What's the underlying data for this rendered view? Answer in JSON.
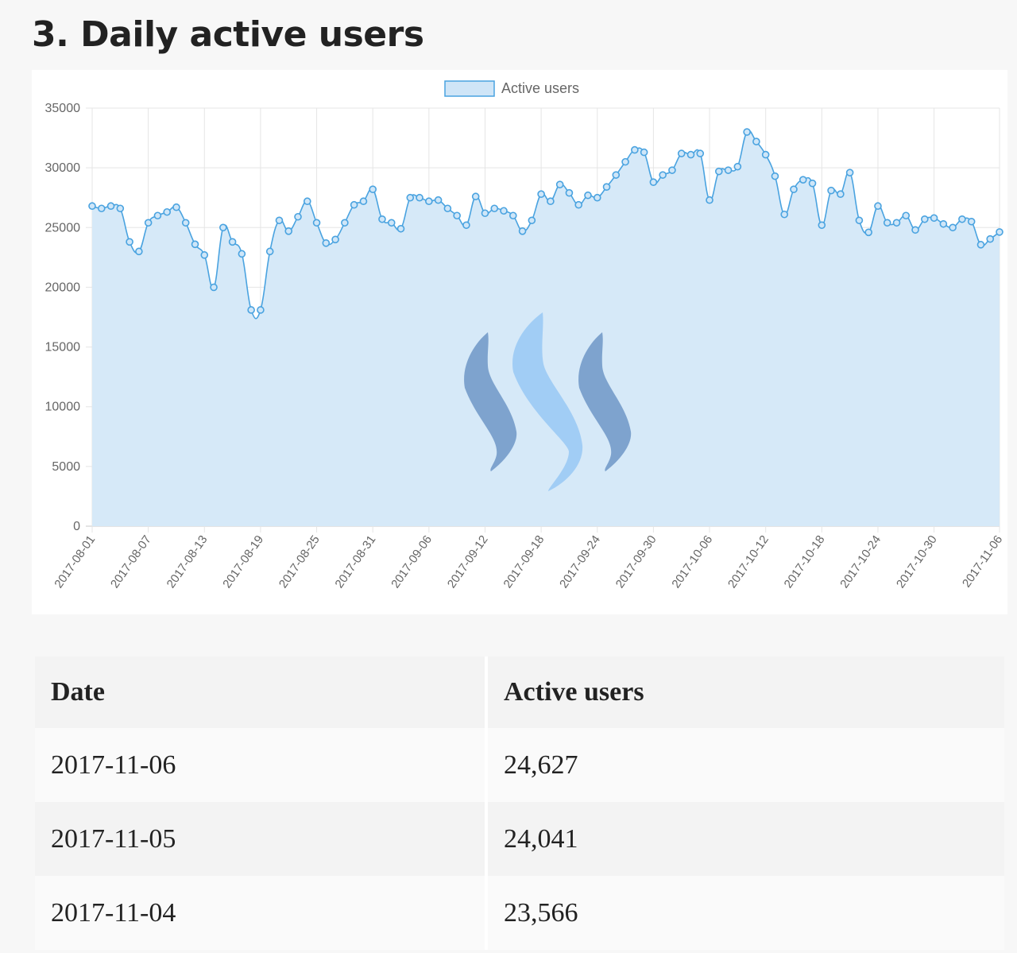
{
  "section": {
    "title": "3. Daily active users"
  },
  "chart_data": {
    "type": "area",
    "title": "",
    "xlabel": "",
    "ylabel": "",
    "ylim": [
      0,
      35000
    ],
    "yticks": [
      0,
      5000,
      10000,
      15000,
      20000,
      25000,
      30000,
      35000
    ],
    "xtick_labels": [
      "2017-08-01",
      "2017-08-07",
      "2017-08-13",
      "2017-08-19",
      "2017-08-25",
      "2017-08-31",
      "2017-09-06",
      "2017-09-12",
      "2017-09-18",
      "2017-09-24",
      "2017-09-30",
      "2017-10-06",
      "2017-10-12",
      "2017-10-18",
      "2017-10-24",
      "2017-10-30",
      "2017-11-06"
    ],
    "grid": true,
    "legend_position": "top-center",
    "colors": {
      "line": "#4aa3e0",
      "fill": "#d6e9f8",
      "legend_fill": "#cfe5f7"
    },
    "x_start": "2017-08-01",
    "x_end": "2017-11-06",
    "series": [
      {
        "name": "Active users",
        "values": [
          26800,
          26600,
          26800,
          26600,
          23800,
          23000,
          25400,
          26000,
          26300,
          26700,
          25400,
          23600,
          22700,
          20000,
          25000,
          23800,
          22800,
          18100,
          18100,
          23000,
          25600,
          24700,
          25900,
          27200,
          25400,
          23700,
          24000,
          25400,
          26900,
          27200,
          28200,
          25700,
          25400,
          24900,
          27500,
          27500,
          27200,
          27300,
          26600,
          26000,
          25200,
          27600,
          26200,
          26600,
          26400,
          26000,
          24700,
          25600,
          27800,
          27200,
          28600,
          27900,
          26900,
          27700,
          27500,
          28400,
          29400,
          30500,
          31500,
          31300,
          28800,
          29400,
          29800,
          31200,
          31100,
          31200,
          27300,
          29700,
          29800,
          30100,
          33000,
          32200,
          31100,
          29300,
          26100,
          28200,
          29000,
          28700,
          25200,
          28100,
          27800,
          29600,
          25600,
          24600,
          26800,
          25400,
          25400,
          26000,
          24800,
          25700,
          25800,
          25300,
          25000,
          25700,
          25500,
          23566,
          24041,
          24627
        ]
      }
    ]
  },
  "table": {
    "headers": [
      "Date",
      "Active users"
    ],
    "rows": [
      [
        "2017-11-06",
        "24,627"
      ],
      [
        "2017-11-05",
        "24,041"
      ],
      [
        "2017-11-04",
        "23,566"
      ]
    ]
  }
}
